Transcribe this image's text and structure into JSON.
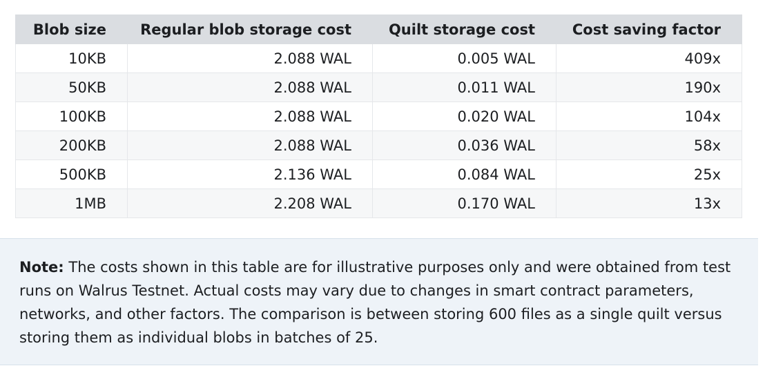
{
  "table": {
    "headers": [
      "Blob size",
      "Regular blob storage cost",
      "Quilt storage cost",
      "Cost saving factor"
    ],
    "rows": [
      [
        "10KB",
        "2.088 WAL",
        "0.005 WAL",
        "409x"
      ],
      [
        "50KB",
        "2.088 WAL",
        "0.011 WAL",
        "190x"
      ],
      [
        "100KB",
        "2.088 WAL",
        "0.020 WAL",
        "104x"
      ],
      [
        "200KB",
        "2.088 WAL",
        "0.036 WAL",
        "58x"
      ],
      [
        "500KB",
        "2.136 WAL",
        "0.084 WAL",
        "25x"
      ],
      [
        "1MB",
        "2.208 WAL",
        "0.170 WAL",
        "13x"
      ]
    ]
  },
  "note": {
    "label": "Note:",
    "text": " The costs shown in this table are for illustrative purposes only and were obtained from test runs on Walrus Testnet. Actual costs may vary due to changes in smart contract parameters, networks, and other factors. The comparison is between storing 600 files as a single quilt versus storing them as individual blobs in batches of 25."
  },
  "colors": {
    "header_bg": "#dadde1",
    "row_alt_bg": "#f6f7f8",
    "note_bg": "#eef3f8"
  }
}
